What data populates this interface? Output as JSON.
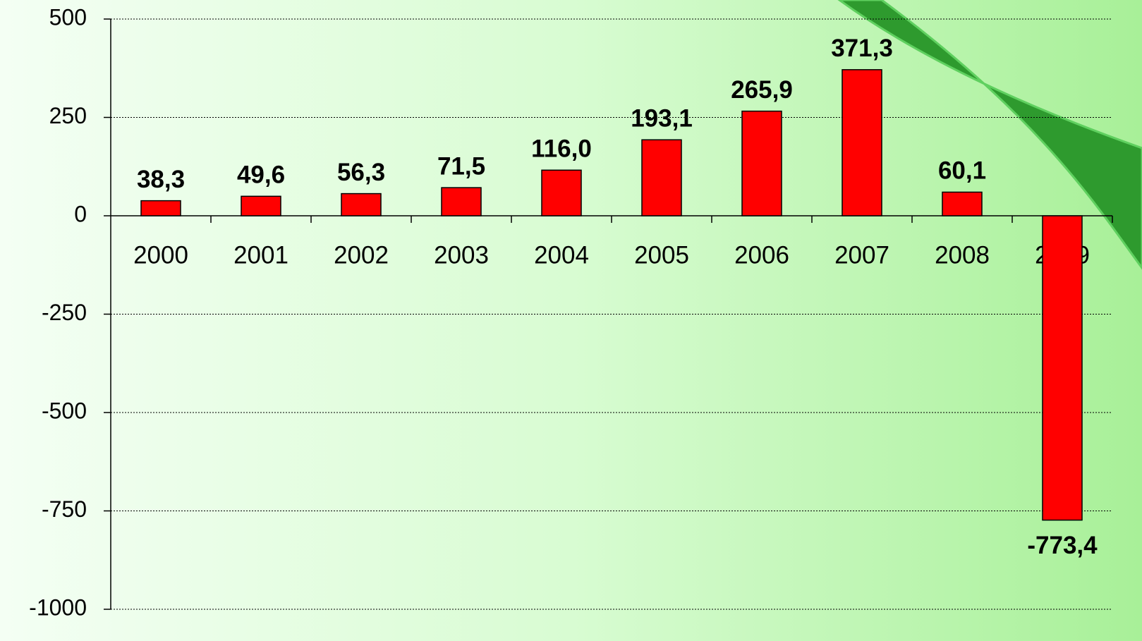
{
  "chart_data": {
    "type": "bar",
    "categories": [
      "2000",
      "2001",
      "2002",
      "2003",
      "2004",
      "2005",
      "2006",
      "2007",
      "2008",
      "2009"
    ],
    "values": [
      38.3,
      49.6,
      56.3,
      71.5,
      116.0,
      193.1,
      265.9,
      371.3,
      60.1,
      -773.4
    ],
    "value_labels": [
      "38,3",
      "49,6",
      "56,3",
      "71,5",
      "116,0",
      "193,1",
      "265,9",
      "371,3",
      "60,1",
      "-773,4"
    ],
    "color": "#ff0000",
    "ylim": [
      -1000,
      500
    ],
    "yticks": [
      500,
      250,
      0,
      -250,
      -500,
      -750,
      -1000
    ],
    "grid": true
  }
}
